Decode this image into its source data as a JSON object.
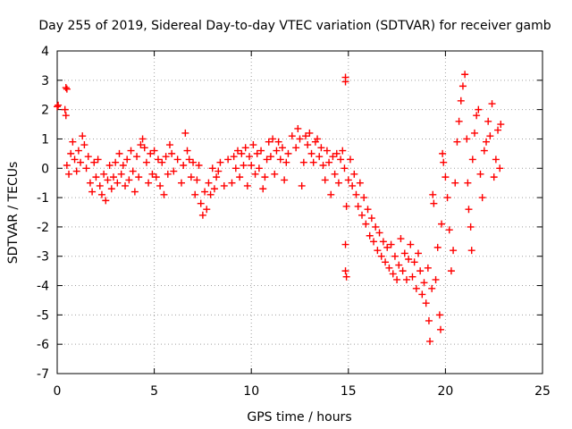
{
  "chart_data": {
    "type": "scatter",
    "title": "Day 255 of 2019, Sidereal Day-to-day VTEC variation (SDTVAR) for receiver gamb",
    "xlabel": "GPS time / hours",
    "ylabel": "SDTVAR / TECUs",
    "xlim": [
      0,
      25
    ],
    "ylim": [
      -7,
      4
    ],
    "xticks": [
      "0",
      "5",
      "10",
      "15",
      "20",
      "25"
    ],
    "yticks": [
      "4",
      "3",
      "2",
      "1",
      "0",
      "-1",
      "-2",
      "-3",
      "-4",
      "-5",
      "-6",
      "-7"
    ],
    "grid": true,
    "marker": "plus",
    "color": "#ff0000",
    "series": [
      {
        "name": "SDTVAR",
        "points": [
          [
            0.0,
            2.1
          ],
          [
            0.05,
            2.15
          ],
          [
            0.4,
            2.0
          ],
          [
            0.45,
            1.8
          ],
          [
            0.45,
            2.75
          ],
          [
            0.5,
            2.7
          ],
          [
            0.5,
            0.1
          ],
          [
            0.6,
            -0.2
          ],
          [
            0.7,
            0.5
          ],
          [
            0.8,
            0.9
          ],
          [
            0.9,
            0.3
          ],
          [
            1.0,
            -0.1
          ],
          [
            1.1,
            0.6
          ],
          [
            1.2,
            0.2
          ],
          [
            1.3,
            1.1
          ],
          [
            1.4,
            0.8
          ],
          [
            1.5,
            0.0
          ],
          [
            1.6,
            0.4
          ],
          [
            1.7,
            -0.5
          ],
          [
            1.8,
            -0.8
          ],
          [
            1.9,
            0.2
          ],
          [
            2.0,
            -0.3
          ],
          [
            2.1,
            0.3
          ],
          [
            2.2,
            -0.6
          ],
          [
            2.3,
            -0.9
          ],
          [
            2.4,
            -0.2
          ],
          [
            2.5,
            -1.1
          ],
          [
            2.6,
            -0.4
          ],
          [
            2.7,
            0.1
          ],
          [
            2.8,
            -0.7
          ],
          [
            2.9,
            -0.3
          ],
          [
            3.0,
            0.2
          ],
          [
            3.1,
            -0.5
          ],
          [
            3.2,
            0.5
          ],
          [
            3.3,
            -0.2
          ],
          [
            3.4,
            0.1
          ],
          [
            3.5,
            -0.6
          ],
          [
            3.6,
            0.3
          ],
          [
            3.7,
            -0.4
          ],
          [
            3.8,
            0.6
          ],
          [
            3.9,
            -0.1
          ],
          [
            4.0,
            -0.8
          ],
          [
            4.1,
            0.4
          ],
          [
            4.2,
            -0.3
          ],
          [
            4.3,
            0.8
          ],
          [
            4.4,
            1.0
          ],
          [
            4.5,
            0.7
          ],
          [
            4.6,
            0.2
          ],
          [
            4.7,
            -0.5
          ],
          [
            4.8,
            0.5
          ],
          [
            4.9,
            -0.2
          ],
          [
            5.0,
            0.6
          ],
          [
            5.1,
            -0.3
          ],
          [
            5.2,
            0.3
          ],
          [
            5.3,
            -0.6
          ],
          [
            5.4,
            0.2
          ],
          [
            5.5,
            -0.9
          ],
          [
            5.6,
            0.4
          ],
          [
            5.7,
            -0.2
          ],
          [
            5.8,
            0.8
          ],
          [
            5.9,
            0.5
          ],
          [
            6.0,
            -0.1
          ],
          [
            6.2,
            0.3
          ],
          [
            6.4,
            -0.5
          ],
          [
            6.5,
            0.1
          ],
          [
            6.6,
            1.2
          ],
          [
            6.7,
            0.6
          ],
          [
            6.8,
            0.3
          ],
          [
            6.9,
            -0.3
          ],
          [
            7.0,
            0.2
          ],
          [
            7.1,
            -0.9
          ],
          [
            7.2,
            -0.4
          ],
          [
            7.3,
            0.1
          ],
          [
            7.4,
            -1.2
          ],
          [
            7.5,
            -1.6
          ],
          [
            7.6,
            -0.8
          ],
          [
            7.7,
            -1.4
          ],
          [
            7.8,
            -0.5
          ],
          [
            7.9,
            -0.9
          ],
          [
            8.0,
            0.0
          ],
          [
            8.1,
            -0.7
          ],
          [
            8.2,
            -0.3
          ],
          [
            8.3,
            -0.1
          ],
          [
            8.4,
            0.2
          ],
          [
            8.6,
            -0.6
          ],
          [
            8.8,
            0.3
          ],
          [
            9.0,
            -0.5
          ],
          [
            9.1,
            0.4
          ],
          [
            9.2,
            0.0
          ],
          [
            9.3,
            0.6
          ],
          [
            9.4,
            -0.3
          ],
          [
            9.5,
            0.5
          ],
          [
            9.6,
            0.1
          ],
          [
            9.7,
            0.7
          ],
          [
            9.8,
            -0.6
          ],
          [
            9.9,
            0.4
          ],
          [
            10.0,
            0.1
          ],
          [
            10.1,
            0.8
          ],
          [
            10.2,
            -0.2
          ],
          [
            10.3,
            0.5
          ],
          [
            10.4,
            0.0
          ],
          [
            10.5,
            0.6
          ],
          [
            10.6,
            -0.7
          ],
          [
            10.7,
            -0.3
          ],
          [
            10.8,
            0.3
          ],
          [
            10.9,
            0.9
          ],
          [
            11.0,
            0.4
          ],
          [
            11.1,
            1.0
          ],
          [
            11.2,
            -0.2
          ],
          [
            11.3,
            0.6
          ],
          [
            11.4,
            0.9
          ],
          [
            11.5,
            0.3
          ],
          [
            11.6,
            0.7
          ],
          [
            11.7,
            -0.4
          ],
          [
            11.8,
            0.2
          ],
          [
            11.9,
            0.5
          ],
          [
            12.1,
            1.1
          ],
          [
            12.3,
            0.7
          ],
          [
            12.4,
            1.35
          ],
          [
            12.5,
            1.0
          ],
          [
            12.6,
            -0.6
          ],
          [
            12.7,
            0.2
          ],
          [
            12.8,
            1.1
          ],
          [
            12.9,
            0.8
          ],
          [
            13.0,
            1.2
          ],
          [
            13.1,
            0.5
          ],
          [
            13.2,
            0.2
          ],
          [
            13.3,
            0.9
          ],
          [
            13.4,
            1.0
          ],
          [
            13.5,
            0.4
          ],
          [
            13.6,
            0.7
          ],
          [
            13.7,
            0.1
          ],
          [
            13.8,
            -0.4
          ],
          [
            13.9,
            0.6
          ],
          [
            14.0,
            0.2
          ],
          [
            14.1,
            -0.9
          ],
          [
            14.2,
            0.4
          ],
          [
            14.3,
            -0.2
          ],
          [
            14.4,
            0.5
          ],
          [
            14.5,
            -0.5
          ],
          [
            14.6,
            0.3
          ],
          [
            14.7,
            0.6
          ],
          [
            14.8,
            0.0
          ],
          [
            14.85,
            3.1
          ],
          [
            14.85,
            2.95
          ],
          [
            14.85,
            -2.6
          ],
          [
            14.85,
            -3.5
          ],
          [
            14.9,
            -3.7
          ],
          [
            14.9,
            -1.3
          ],
          [
            15.0,
            -0.4
          ],
          [
            15.1,
            0.3
          ],
          [
            15.2,
            -0.6
          ],
          [
            15.3,
            -0.2
          ],
          [
            15.4,
            -0.9
          ],
          [
            15.5,
            -1.3
          ],
          [
            15.6,
            -0.5
          ],
          [
            15.7,
            -1.6
          ],
          [
            15.8,
            -1.0
          ],
          [
            15.9,
            -1.9
          ],
          [
            16.0,
            -1.4
          ],
          [
            16.1,
            -2.3
          ],
          [
            16.2,
            -1.7
          ],
          [
            16.3,
            -2.5
          ],
          [
            16.4,
            -2.0
          ],
          [
            16.5,
            -2.8
          ],
          [
            16.6,
            -2.2
          ],
          [
            16.7,
            -3.0
          ],
          [
            16.8,
            -2.5
          ],
          [
            16.9,
            -3.2
          ],
          [
            17.0,
            -2.7
          ],
          [
            17.1,
            -3.4
          ],
          [
            17.2,
            -2.6
          ],
          [
            17.3,
            -3.6
          ],
          [
            17.4,
            -3.0
          ],
          [
            17.5,
            -3.8
          ],
          [
            17.6,
            -3.3
          ],
          [
            17.7,
            -2.4
          ],
          [
            17.8,
            -3.5
          ],
          [
            17.9,
            -2.9
          ],
          [
            18.0,
            -3.8
          ],
          [
            18.1,
            -3.1
          ],
          [
            18.2,
            -2.6
          ],
          [
            18.3,
            -3.7
          ],
          [
            18.4,
            -3.2
          ],
          [
            18.5,
            -4.1
          ],
          [
            18.6,
            -2.9
          ],
          [
            18.7,
            -3.5
          ],
          [
            18.8,
            -4.3
          ],
          [
            18.9,
            -3.9
          ],
          [
            19.0,
            -4.6
          ],
          [
            19.1,
            -3.4
          ],
          [
            19.15,
            -5.2
          ],
          [
            19.2,
            -5.9
          ],
          [
            19.3,
            -4.1
          ],
          [
            19.35,
            -0.9
          ],
          [
            19.4,
            -1.2
          ],
          [
            19.5,
            -3.8
          ],
          [
            19.6,
            -2.7
          ],
          [
            19.7,
            -5.0
          ],
          [
            19.75,
            -5.5
          ],
          [
            19.8,
            -1.9
          ],
          [
            19.85,
            0.5
          ],
          [
            19.9,
            0.2
          ],
          [
            20.0,
            -0.3
          ],
          [
            20.1,
            -1.0
          ],
          [
            20.2,
            -2.1
          ],
          [
            20.3,
            -3.5
          ],
          [
            20.4,
            -2.8
          ],
          [
            20.5,
            -0.5
          ],
          [
            20.6,
            0.9
          ],
          [
            20.7,
            1.6
          ],
          [
            20.8,
            2.3
          ],
          [
            20.9,
            2.8
          ],
          [
            21.0,
            3.2
          ],
          [
            21.1,
            1.0
          ],
          [
            21.15,
            -0.5
          ],
          [
            21.2,
            -1.4
          ],
          [
            21.3,
            -2.0
          ],
          [
            21.35,
            -2.8
          ],
          [
            21.4,
            0.3
          ],
          [
            21.5,
            1.2
          ],
          [
            21.6,
            1.8
          ],
          [
            21.7,
            2.0
          ],
          [
            21.8,
            -0.2
          ],
          [
            21.9,
            -1.0
          ],
          [
            22.0,
            0.6
          ],
          [
            22.1,
            0.9
          ],
          [
            22.2,
            1.6
          ],
          [
            22.3,
            1.1
          ],
          [
            22.4,
            2.2
          ],
          [
            22.5,
            -0.3
          ],
          [
            22.6,
            0.3
          ],
          [
            22.7,
            1.3
          ],
          [
            22.8,
            0.0
          ],
          [
            22.85,
            1.5
          ]
        ]
      }
    ]
  }
}
